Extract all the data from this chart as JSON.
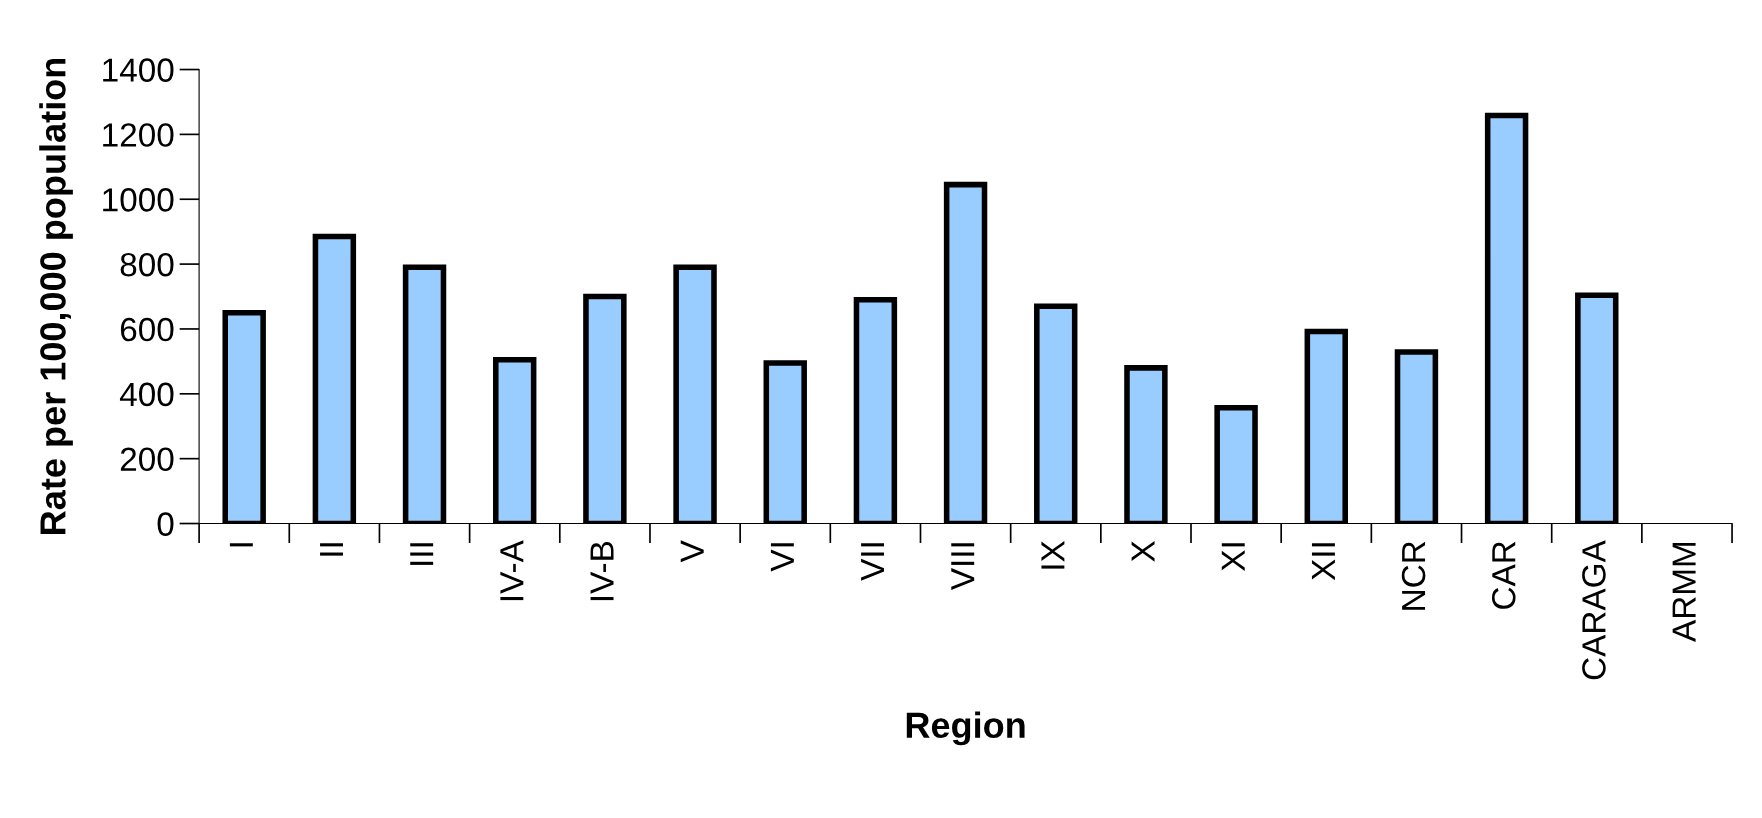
{
  "chart_data": {
    "type": "bar",
    "xlabel": "Region",
    "ylabel": "Rate per 100,000 population",
    "categories": [
      "I",
      "II",
      "III",
      "IV-A",
      "IV-B",
      "V",
      "VI",
      "VII",
      "VIII",
      "IX",
      "X",
      "XI",
      "XII",
      "NCR",
      "CAR",
      "CARAGA",
      "ARMM"
    ],
    "values": [
      650,
      885,
      790,
      505,
      700,
      790,
      495,
      690,
      1045,
      670,
      480,
      357,
      592,
      529,
      1258,
      704,
      null
    ],
    "color": "#99ccff",
    "ylim": [
      0,
      1400
    ],
    "yticks": [
      0,
      200,
      400,
      600,
      800,
      1000,
      1200,
      1400
    ],
    "grid": false,
    "legend": false
  }
}
